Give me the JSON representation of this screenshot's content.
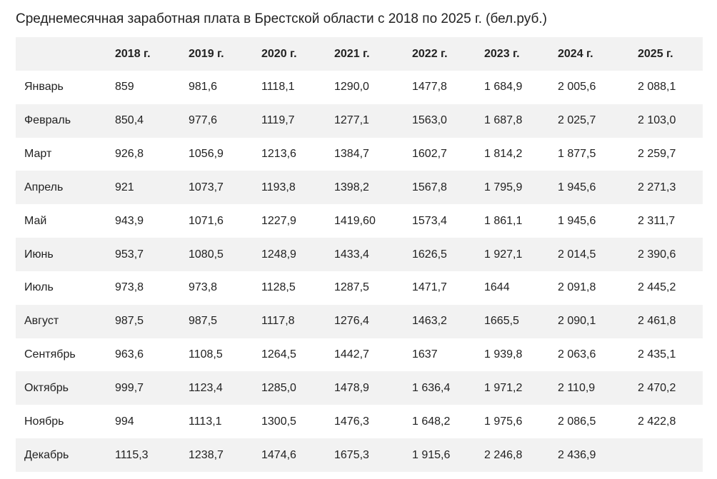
{
  "title": "Среднемесячная заработная плата в Брестской области с 2018 по 2025 г. (бел.руб.)",
  "table": {
    "columns": [
      "",
      "2018 г.",
      "2019 г.",
      "2020 г.",
      "2021 г.",
      "2022 г.",
      "2023 г.",
      "2024 г.",
      "2025 г."
    ],
    "rows": [
      {
        "month": "Январь",
        "values": [
          "859",
          "981,6",
          "1118,1",
          "1290,0",
          "1477,8",
          "1 684,9",
          "2 005,6",
          "2 088,1"
        ]
      },
      {
        "month": "Февраль",
        "values": [
          "850,4",
          "977,6",
          "1119,7",
          "1277,1",
          "1563,0",
          "1 687,8",
          "2 025,7",
          "2 103,0"
        ]
      },
      {
        "month": "Март",
        "values": [
          "926,8",
          "1056,9",
          "1213,6",
          "1384,7",
          "1602,7",
          "1 814,2",
          "1 877,5",
          "2 259,7"
        ]
      },
      {
        "month": "Апрель",
        "values": [
          "921",
          "1073,7",
          "1193,8",
          "1398,2",
          "1567,8",
          "1 795,9",
          "1 945,6",
          "2 271,3"
        ]
      },
      {
        "month": "Май",
        "values": [
          "943,9",
          "1071,6",
          "1227,9",
          "1419,60",
          "1573,4",
          "1 861,1",
          "1 945,6",
          "2 311,7"
        ]
      },
      {
        "month": "Июнь",
        "values": [
          "953,7",
          "1080,5",
          "1248,9",
          "1433,4",
          "1626,5",
          "1 927,1",
          "2 014,5",
          "2 390,6"
        ]
      },
      {
        "month": "Июль",
        "values": [
          "973,8",
          "973,8",
          "1128,5",
          "1287,5",
          "1471,7",
          "1644",
          "2 091,8",
          "2 445,2"
        ]
      },
      {
        "month": "Август",
        "values": [
          "987,5",
          "987,5",
          "1117,8",
          "1276,4",
          "1463,2",
          "1665,5",
          "2 090,1",
          "2 461,8"
        ]
      },
      {
        "month": "Сентябрь",
        "values": [
          "963,6",
          "1108,5",
          "1264,5",
          "1442,7",
          "1637",
          "1 939,8",
          "2 063,6",
          "2 435,1"
        ]
      },
      {
        "month": "Октябрь",
        "values": [
          "999,7",
          "1123,4",
          "1285,0",
          "1478,9",
          "1 636,4",
          "1 971,2",
          "2 110,9",
          "2 470,2"
        ]
      },
      {
        "month": "Ноябрь",
        "values": [
          "994",
          "1113,1",
          "1300,5",
          "1476,3",
          "1 648,2",
          "1 975,6",
          "2 086,5",
          "2 422,8"
        ]
      },
      {
        "month": "Декабрь",
        "values": [
          "1115,3",
          "1238,7",
          "1474,6",
          "1675,3",
          "1 915,6",
          "2 246,8",
          "2 436,9",
          ""
        ]
      }
    ]
  }
}
